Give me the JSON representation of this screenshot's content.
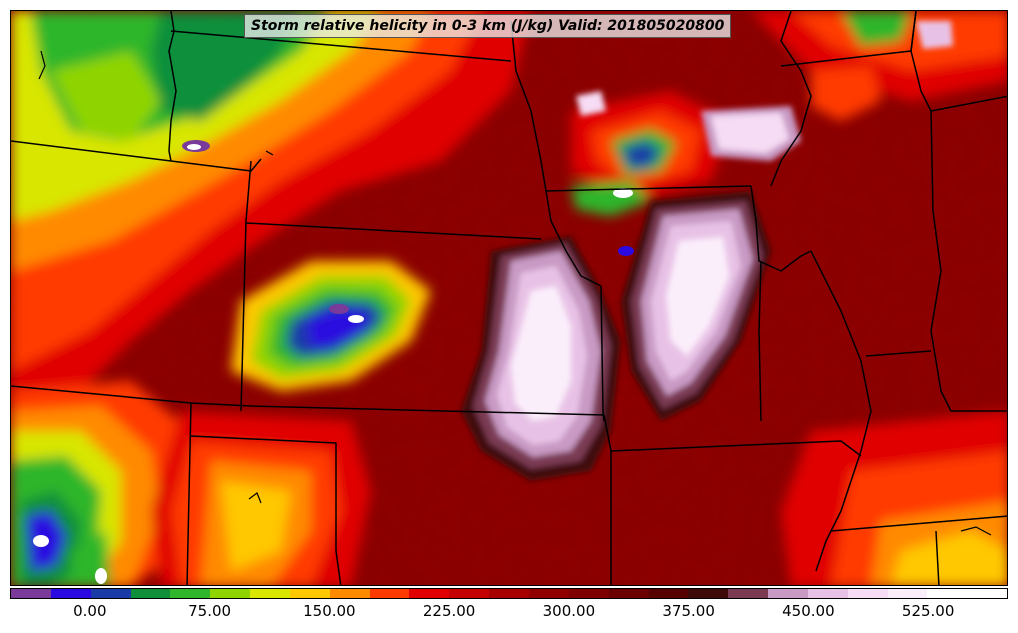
{
  "title": "Storm relative helicity in 0-3 km (J/kg) Valid: 201805020800",
  "colorbar": {
    "min": -50,
    "max": 575,
    "colors": [
      "#7a3a9a",
      "#2a0ae0",
      "#1a3aa8",
      "#0f8f3a",
      "#2fb62a",
      "#8fd400",
      "#d8e600",
      "#ffc800",
      "#ff8a00",
      "#ff3a00",
      "#e00000",
      "#c40000",
      "#a80000",
      "#900000",
      "#7e0000",
      "#6a0000",
      "#560000",
      "#3f0a0a",
      "#7a3a52",
      "#c89ac4",
      "#e8c2e6",
      "#f6dcf4",
      "#fbeefb",
      "#ffffff",
      "#ffffff"
    ],
    "ticks": [
      {
        "value": 0,
        "label": "0.00"
      },
      {
        "value": 75,
        "label": "75.00"
      },
      {
        "value": 150,
        "label": "150.00"
      },
      {
        "value": 225,
        "label": "225.00"
      },
      {
        "value": 300,
        "label": "300.00"
      },
      {
        "value": 375,
        "label": "375.00"
      },
      {
        "value": 450,
        "label": "450.00"
      },
      {
        "value": 525,
        "label": "525.00"
      }
    ]
  }
}
